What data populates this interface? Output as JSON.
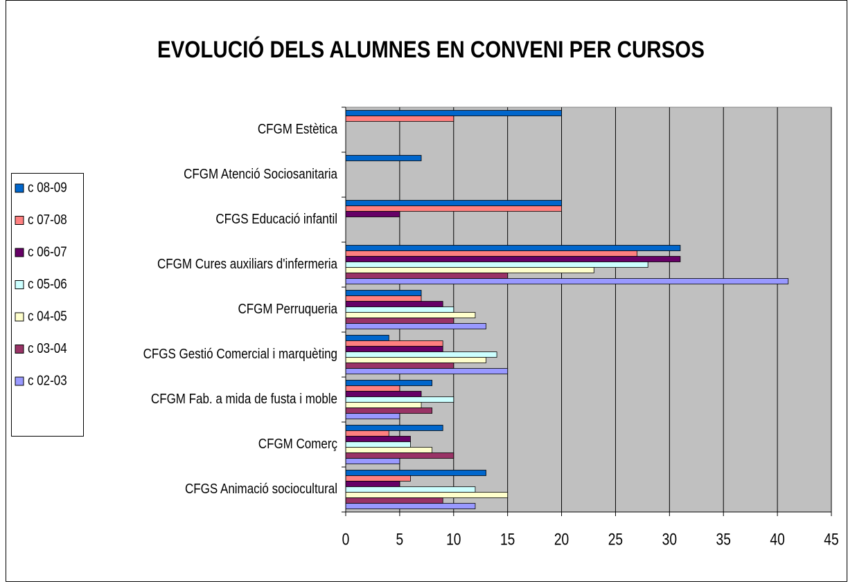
{
  "chart_data": {
    "type": "bar",
    "orientation": "horizontal",
    "title": "EVOLUCIÓ DELS ALUMNES EN CONVENI PER CURSOS",
    "categories": [
      "CFGM Estètica",
      "CFGM Atenció Sociosanitaria",
      "CFGS Educació infantil",
      "CFGM Cures auxiliars d'infermeria",
      "CFGM Perruqueria",
      "CFGS Gestió Comercial i marquèting",
      "CFGM Fab. a mida de fusta i moble",
      "CFGM Comerç",
      "CFGS Animació sociocultural"
    ],
    "series": [
      {
        "name": "c 08-09",
        "color": "#0066cc",
        "values": [
          20,
          7,
          20,
          31,
          7,
          4,
          8,
          9,
          13
        ]
      },
      {
        "name": "c 07-08",
        "color": "#ff8080",
        "values": [
          10,
          0,
          20,
          27,
          7,
          9,
          5,
          4,
          6
        ]
      },
      {
        "name": "c 06-07",
        "color": "#660066",
        "values": [
          0,
          0,
          5,
          31,
          9,
          9,
          7,
          6,
          5
        ]
      },
      {
        "name": "c 05-06",
        "color": "#ccffff",
        "values": [
          0,
          0,
          0,
          28,
          10,
          14,
          10,
          6,
          12
        ]
      },
      {
        "name": "c 04-05",
        "color": "#ffffcc",
        "values": [
          0,
          0,
          0,
          23,
          12,
          13,
          7,
          8,
          15
        ]
      },
      {
        "name": "c 03-04",
        "color": "#993366",
        "values": [
          0,
          0,
          0,
          15,
          10,
          10,
          8,
          10,
          9
        ]
      },
      {
        "name": "c 02-03",
        "color": "#9999ff",
        "values": [
          0,
          0,
          0,
          41,
          13,
          15,
          5,
          5,
          12
        ]
      }
    ],
    "xlim": [
      0,
      45
    ],
    "xticks": [
      0,
      5,
      10,
      15,
      20,
      25,
      30,
      35,
      40,
      45
    ],
    "grid": true,
    "legend": "left"
  }
}
